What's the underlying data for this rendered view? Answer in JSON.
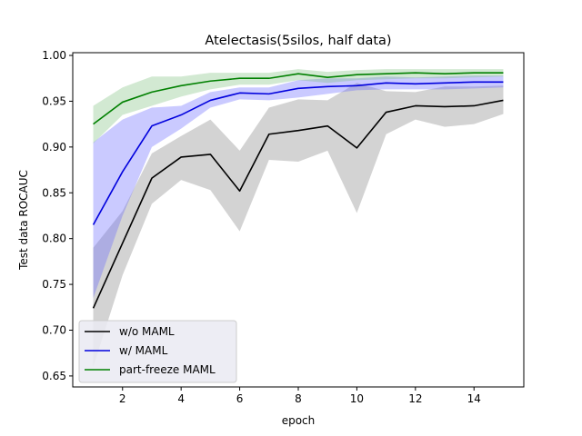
{
  "chart_data": {
    "type": "line",
    "title": "Atelectasis(5silos, half data)",
    "xlabel": "epoch",
    "ylabel": "Test data ROCAUC",
    "xlim": [
      0.3,
      15.7
    ],
    "ylim": [
      0.638,
      1.003
    ],
    "xticks": [
      2,
      4,
      6,
      8,
      10,
      12,
      14
    ],
    "yticks": [
      0.65,
      0.7,
      0.75,
      0.8,
      0.85,
      0.9,
      0.95,
      1.0
    ],
    "ytick_labels": [
      "0.65",
      "0.70",
      "0.75",
      "0.80",
      "0.85",
      "0.90",
      "0.95",
      "1.00"
    ],
    "grid": false,
    "legend_position": "lower-left",
    "x": [
      1,
      2,
      3,
      4,
      5,
      6,
      7,
      8,
      9,
      10,
      11,
      12,
      13,
      14,
      15
    ],
    "series": [
      {
        "name": "w/o MAML",
        "color": "#000000",
        "band_color": "#808080",
        "values": [
          0.724,
          0.795,
          0.866,
          0.889,
          0.892,
          0.852,
          0.914,
          0.918,
          0.923,
          0.899,
          0.938,
          0.945,
          0.944,
          0.945,
          0.951
        ],
        "lower": [
          0.66,
          0.76,
          0.838,
          0.864,
          0.853,
          0.808,
          0.886,
          0.884,
          0.896,
          0.828,
          0.914,
          0.93,
          0.922,
          0.925,
          0.936
        ],
        "upper": [
          0.79,
          0.83,
          0.893,
          0.912,
          0.93,
          0.896,
          0.943,
          0.952,
          0.951,
          0.97,
          0.961,
          0.96,
          0.966,
          0.966,
          0.967
        ]
      },
      {
        "name": "w/ MAML",
        "color": "#0000dd",
        "band_color": "#6666ff",
        "values": [
          0.815,
          0.873,
          0.923,
          0.935,
          0.951,
          0.959,
          0.958,
          0.964,
          0.966,
          0.967,
          0.97,
          0.969,
          0.97,
          0.971,
          0.971
        ],
        "lower": [
          0.735,
          0.825,
          0.9,
          0.92,
          0.943,
          0.952,
          0.951,
          0.954,
          0.958,
          0.962,
          0.963,
          0.963,
          0.963,
          0.964,
          0.965
        ],
        "upper": [
          0.905,
          0.93,
          0.943,
          0.945,
          0.96,
          0.965,
          0.965,
          0.973,
          0.975,
          0.975,
          0.977,
          0.976,
          0.977,
          0.978,
          0.978
        ]
      },
      {
        "name": "part-freeze MAML",
        "color": "#008000",
        "band_color": "#7fbf7f",
        "values": [
          0.925,
          0.949,
          0.96,
          0.967,
          0.972,
          0.975,
          0.975,
          0.98,
          0.976,
          0.979,
          0.98,
          0.981,
          0.98,
          0.981,
          0.981
        ],
        "lower": [
          0.904,
          0.935,
          0.945,
          0.955,
          0.963,
          0.968,
          0.968,
          0.973,
          0.97,
          0.973,
          0.974,
          0.975,
          0.975,
          0.976,
          0.977
        ],
        "upper": [
          0.945,
          0.965,
          0.977,
          0.977,
          0.981,
          0.981,
          0.981,
          0.985,
          0.982,
          0.984,
          0.985,
          0.985,
          0.985,
          0.985,
          0.985
        ]
      }
    ]
  }
}
